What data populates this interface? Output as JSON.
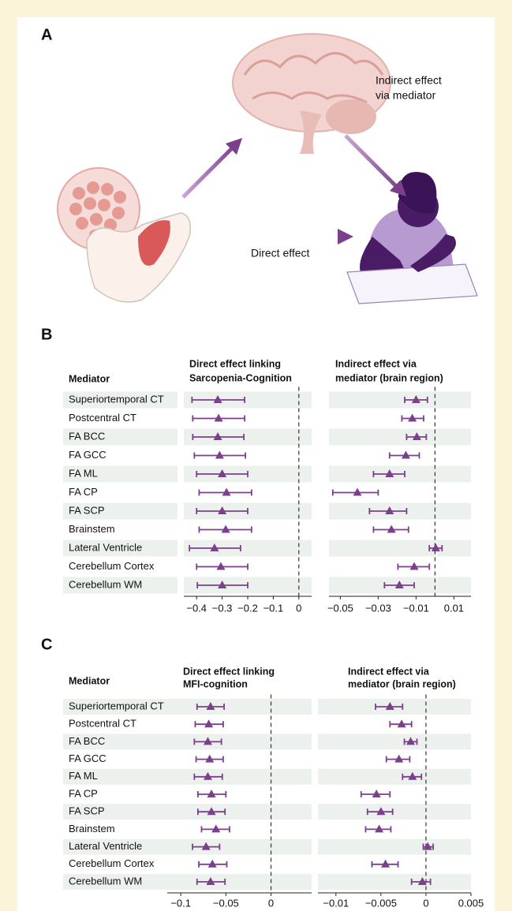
{
  "panel_a": {
    "label": "A",
    "indirect_label": [
      "Indirect effect",
      "via mediator"
    ],
    "direct_label": "Direct effect"
  },
  "chart_data": [
    {
      "type": "forest",
      "label": "B",
      "category_header": "Mediator",
      "color": "#7b3f8c",
      "categories": [
        "Superiortemporal CT",
        "Postcentral CT",
        "FA BCC",
        "FA GCC",
        "FA ML",
        "FA CP",
        "FA SCP",
        "Brainstem",
        "Lateral Ventricle",
        "Cerebellum Cortex",
        "Cerebellum WM"
      ],
      "subplots": [
        {
          "title": [
            "Direct effect linking",
            "Sarcopenia-Cognition"
          ],
          "values": [
            -0.317,
            -0.314,
            -0.317,
            -0.31,
            -0.3,
            -0.283,
            -0.3,
            -0.286,
            -0.33,
            -0.305,
            -0.3
          ],
          "lower": [
            -0.418,
            -0.415,
            -0.415,
            -0.409,
            -0.4,
            -0.39,
            -0.4,
            -0.39,
            -0.428,
            -0.4,
            -0.397
          ],
          "upper": [
            -0.212,
            -0.212,
            -0.215,
            -0.209,
            -0.2,
            -0.185,
            -0.2,
            -0.185,
            -0.228,
            -0.2,
            -0.2
          ],
          "xlim": [
            -0.45,
            0.05
          ],
          "xticks": [
            {
              "value": -0.4,
              "label": "−0.4"
            },
            {
              "value": -0.3,
              "label": "−0.3"
            },
            {
              "value": -0.2,
              "label": "−0.2"
            },
            {
              "value": -0.1,
              "label": "−0.1"
            },
            0
          ]
        },
        {
          "title": [
            "Indirect effect via",
            "mediator (brain region)"
          ],
          "values": [
            -0.01,
            -0.012,
            -0.0096,
            -0.0154,
            -0.024,
            -0.041,
            -0.024,
            -0.023,
            0.0004,
            -0.011,
            -0.0188
          ],
          "lower": [
            -0.016,
            -0.0175,
            -0.015,
            -0.024,
            -0.0325,
            -0.054,
            -0.0346,
            -0.0325,
            -0.003,
            -0.0196,
            -0.0267
          ],
          "upper": [
            -0.004,
            -0.006,
            -0.0046,
            -0.0083,
            -0.016,
            -0.03,
            -0.015,
            -0.014,
            0.0037,
            -0.003,
            -0.011
          ],
          "xlim": [
            -0.056,
            0.019
          ],
          "xticks": [
            {
              "value": -0.05,
              "label": "−0.05"
            },
            {
              "value": -0.03,
              "label": "−0.03"
            },
            {
              "value": -0.01,
              "label": "−0.01"
            },
            0.01
          ]
        }
      ]
    },
    {
      "type": "forest",
      "label": "C",
      "category_header": "Mediator",
      "color": "#7b3f8c",
      "categories": [
        "Superiortemporal CT",
        "Postcentral CT",
        "FA BCC",
        "FA GCC",
        "FA ML",
        "FA CP",
        "FA SCP",
        "Brainstem",
        "Lateral Ventricle",
        "Cerebellum Cortex",
        "Cerebellum WM"
      ],
      "subplots": [
        {
          "title": [
            "Direct effect linking",
            "MFI-cognition"
          ],
          "values": [
            -0.067,
            -0.069,
            -0.07,
            -0.068,
            -0.07,
            -0.066,
            -0.066,
            -0.061,
            -0.072,
            -0.065,
            -0.067
          ],
          "lower": [
            -0.082,
            -0.084,
            -0.085,
            -0.083,
            -0.085,
            -0.081,
            -0.081,
            -0.077,
            -0.087,
            -0.08,
            -0.082
          ],
          "upper": [
            -0.052,
            -0.053,
            -0.055,
            -0.053,
            -0.054,
            -0.05,
            -0.051,
            -0.046,
            -0.057,
            -0.049,
            -0.051
          ],
          "xlim": [
            -0.115,
            0.045
          ],
          "xticks": [
            {
              "value": -0.1,
              "label": "−0.1"
            },
            {
              "value": -0.05,
              "label": "−0.05"
            },
            0
          ]
        },
        {
          "title": [
            "Indirect effect via",
            "mediator (brain region)"
          ],
          "values": [
            -0.004,
            -0.0027,
            -0.0017,
            -0.003,
            -0.0015,
            -0.0055,
            -0.005,
            -0.0052,
            0.0002,
            -0.0045,
            -0.0004
          ],
          "lower": [
            -0.0056,
            -0.004,
            -0.0024,
            -0.0044,
            -0.0026,
            -0.0072,
            -0.0065,
            -0.0067,
            -0.0003,
            -0.006,
            -0.0016
          ],
          "upper": [
            -0.0026,
            -0.0016,
            -0.001,
            -0.0018,
            -0.0005,
            -0.004,
            -0.0037,
            -0.0039,
            0.0008,
            -0.0031,
            0.0005
          ],
          "xlim": [
            -0.012,
            0.005
          ],
          "xticks": [
            {
              "value": -0.01,
              "label": "−0.01"
            },
            {
              "value": -0.005,
              "label": "−0.005"
            },
            0,
            0.005
          ]
        }
      ]
    }
  ]
}
